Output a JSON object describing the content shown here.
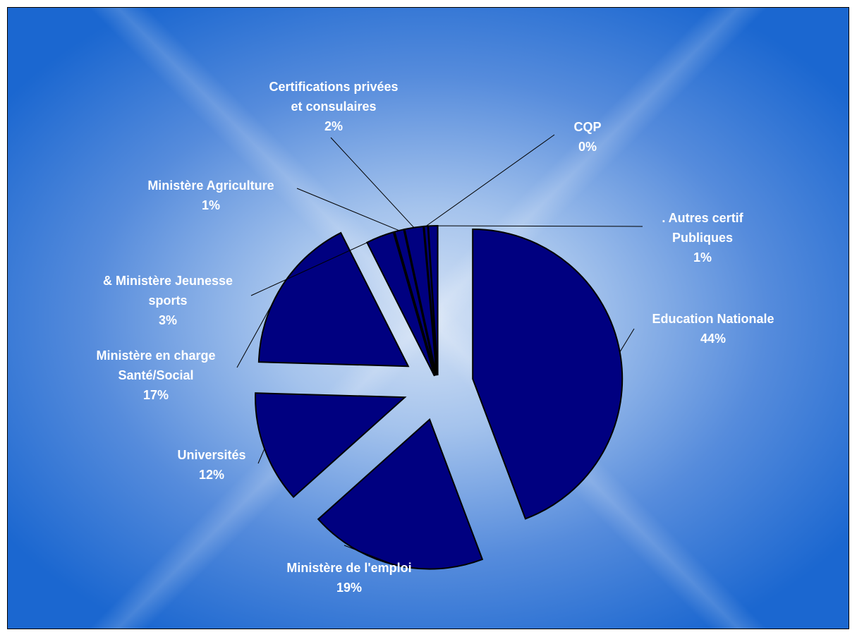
{
  "chart_data": {
    "type": "pie",
    "exploded": true,
    "colors": {
      "slice_fill": "#000080",
      "slice_stroke": "#000000",
      "label_color": "#ffffff",
      "leader_color": "#000000"
    },
    "slices": [
      {
        "name": "Education Nationale",
        "name_lines": [
          "Education Nationale"
        ],
        "value": 44,
        "pct_label": "44%"
      },
      {
        "name": "Ministère de l'emploi",
        "name_lines": [
          "Ministère de l'emploi"
        ],
        "value": 19,
        "pct_label": "19%"
      },
      {
        "name": "Universités",
        "name_lines": [
          "Universités"
        ],
        "value": 12,
        "pct_label": "12%"
      },
      {
        "name": "Ministère en charge Santé/Social",
        "name_lines": [
          "Ministère en charge",
          "Santé/Social"
        ],
        "value": 17,
        "pct_label": "17%"
      },
      {
        "name": "& Ministère Jeunesse sports",
        "name_lines": [
          "& Ministère Jeunesse",
          "sports"
        ],
        "value": 3,
        "pct_label": "3%"
      },
      {
        "name": "Ministère Agriculture",
        "name_lines": [
          "Ministère Agriculture"
        ],
        "value": 1,
        "pct_label": "1%"
      },
      {
        "name": "Certifications privées et consulaires",
        "name_lines": [
          "Certifications privées",
          "et consulaires"
        ],
        "value": 2,
        "pct_label": "2%"
      },
      {
        "name": "CQP",
        "name_lines": [
          "CQP"
        ],
        "value": 0.4,
        "pct_label": "0%"
      },
      {
        "name": ". Autres certif Publiques",
        "name_lines": [
          ". Autres certif",
          "Publiques"
        ],
        "value": 1,
        "pct_label": "1%"
      }
    ]
  }
}
